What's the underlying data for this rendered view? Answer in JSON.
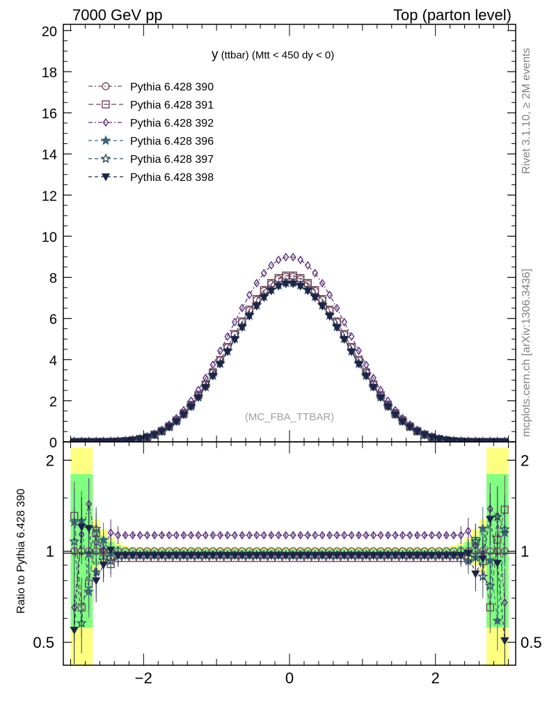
{
  "header": {
    "left": "7000 GeV pp",
    "right": "Top (parton level)"
  },
  "side_text": {
    "top": "Rivet 3.1.10, ≥ 2M events",
    "bottom": "mcplots.cern.ch [arXiv:1306.3436]"
  },
  "plot_title": {
    "main": "y",
    "sub": " (ttbar) (Mtt < 450 dy < 0)"
  },
  "watermark": "(MC_FBA_TTBAR)",
  "ratio_ylabel": "Ratio to Pythia 6.428 390",
  "colors": {
    "s390": "#7a4f63",
    "s391": "#6e4558",
    "s392": "#5a2a7a",
    "s396": "#3d6578",
    "s397": "#2d4f62",
    "s398": "#1c2448",
    "band_yellow": "#ffff80",
    "band_green": "#80ff80"
  },
  "chart_data": [
    {
      "type": "line",
      "panel": "main",
      "xlim": [
        -3.1,
        3.1
      ],
      "ylim": [
        0,
        20.3
      ],
      "y_ticks": [
        "0",
        "2",
        "4",
        "6",
        "8",
        "10",
        "12",
        "14",
        "16",
        "18",
        "20"
      ],
      "legend_position": "top-left",
      "series": [
        {
          "name": "Pythia 6.428 390",
          "marker": "circle-open",
          "line": "dash-dot",
          "peak": 8.05
        },
        {
          "name": "Pythia 6.428 391",
          "marker": "square-open",
          "line": "dash",
          "peak": 8.1
        },
        {
          "name": "Pythia 6.428 392",
          "marker": "diamond-open",
          "line": "dash-dot",
          "peak": 9.0
        },
        {
          "name": "Pythia 6.428 396",
          "marker": "star-filled",
          "line": "dash",
          "peak": 7.75
        },
        {
          "name": "Pythia 6.428 397",
          "marker": "star-open",
          "line": "dash",
          "peak": 7.75
        },
        {
          "name": "Pythia 6.428 398",
          "marker": "triangle-down-filled",
          "line": "dash",
          "peak": 7.7
        }
      ]
    },
    {
      "type": "line",
      "panel": "ratio",
      "xlim": [
        -3.1,
        3.1
      ],
      "ylim": [
        0.42,
        2.3
      ],
      "y_scale": "log",
      "y_ticks": [
        "0.5",
        "1",
        "2"
      ],
      "x_ticks": [
        "−2",
        "0",
        "2"
      ],
      "reference": "Pythia 6.428 390",
      "series_ratios": {
        "Pythia 6.428 391": 0.95,
        "Pythia 6.428 392": 1.13,
        "Pythia 6.428 396": 0.97,
        "Pythia 6.428 397": 0.97,
        "Pythia 6.428 398": 0.97
      }
    }
  ]
}
